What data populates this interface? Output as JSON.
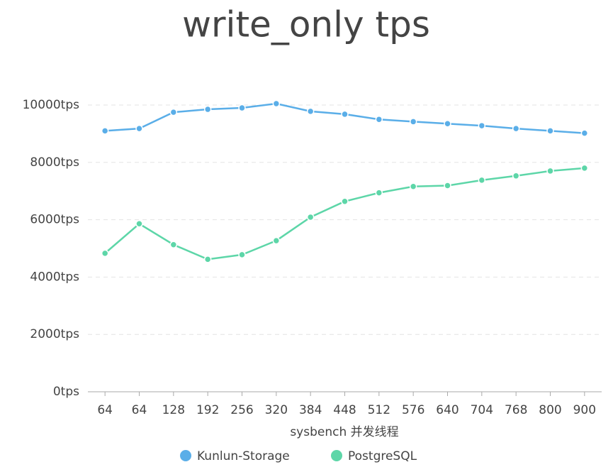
{
  "chart_data": {
    "type": "line",
    "title": "write_only tps",
    "x_label": "sysbench 并发线程",
    "categories": [
      "64",
      "64",
      "128",
      "192",
      "256",
      "320",
      "384",
      "448",
      "512",
      "576",
      "640",
      "704",
      "768",
      "800",
      "900"
    ],
    "series": [
      {
        "name": "Kunlun-Storage",
        "color": "#5aaee8",
        "values": [
          9100,
          9180,
          9750,
          9850,
          9900,
          10050,
          9780,
          9680,
          9500,
          9420,
          9350,
          9280,
          9180,
          9100,
          9020
        ]
      },
      {
        "name": "PostgreSQL",
        "color": "#5dd6a8",
        "values": [
          4830,
          5860,
          5130,
          4620,
          4780,
          5270,
          6090,
          6640,
          6940,
          7160,
          7190,
          7380,
          7530,
          7700,
          7800
        ]
      }
    ],
    "ylim": [
      0,
      10000
    ],
    "yticks": [
      {
        "value": 0,
        "label": "0tps"
      },
      {
        "value": 2000,
        "label": "2000tps"
      },
      {
        "value": 4000,
        "label": "4000tps"
      },
      {
        "value": 6000,
        "label": "6000tps"
      },
      {
        "value": 8000,
        "label": "8000tps"
      },
      {
        "value": 10000,
        "label": "10000tps"
      }
    ],
    "grid": true
  }
}
